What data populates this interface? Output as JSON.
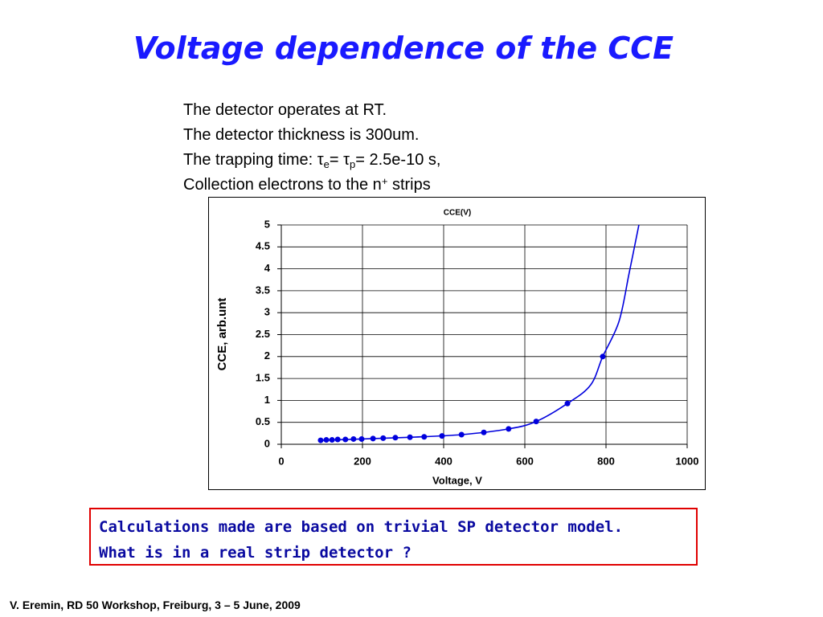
{
  "slide": {
    "title": "Voltage dependence of the CCE",
    "info": [
      "The detector operates at RT.",
      "The detector thickness is 300um."
    ],
    "trap": [
      "The trapping time: τ",
      "e",
      "= τ",
      "p",
      "= 2.5e-10 s,"
    ],
    "collect": [
      "Collection electrons to the n",
      "+",
      " strips"
    ],
    "note": [
      "Calculations made are based on trivial SP detector model.",
      "What is in a real strip detector ?"
    ],
    "footer": "V. Eremin, RD 50 Workshop, Freiburg, 3 – 5 June, 2009"
  },
  "chart_data": {
    "type": "line",
    "title": "CCE(V)",
    "x_label": "Voltage, V",
    "y_label": "CCE, arb.unt",
    "xlim": [
      0,
      1000
    ],
    "xticks": [
      0,
      200,
      400,
      600,
      800,
      1000
    ],
    "ylim": [
      0,
      5
    ],
    "yticks": [
      0,
      0.5,
      1,
      1.5,
      2,
      2.5,
      3,
      3.5,
      4,
      4.5,
      5
    ],
    "grid": true,
    "series": [
      {
        "color": "#0000dd",
        "markers": true,
        "x": [
          97,
          111,
          125,
          139,
          158,
          178,
          198,
          226,
          251,
          281,
          317,
          352,
          396,
          444,
          499,
          560,
          628,
          705,
          792
        ],
        "values": [
          0.09,
          0.1,
          0.1,
          0.11,
          0.11,
          0.12,
          0.12,
          0.13,
          0.14,
          0.15,
          0.16,
          0.17,
          0.19,
          0.22,
          0.27,
          0.35,
          0.52,
          0.93,
          2.0
        ]
      },
      {
        "color": "#0000dd",
        "markers": false,
        "x": [
          97,
          198,
          317,
          444,
          560,
          628,
          705,
          762,
          792,
          832,
          857,
          881
        ],
        "values": [
          0.09,
          0.12,
          0.16,
          0.22,
          0.35,
          0.52,
          0.93,
          1.35,
          2.0,
          2.8,
          3.9,
          5.0
        ]
      }
    ]
  }
}
